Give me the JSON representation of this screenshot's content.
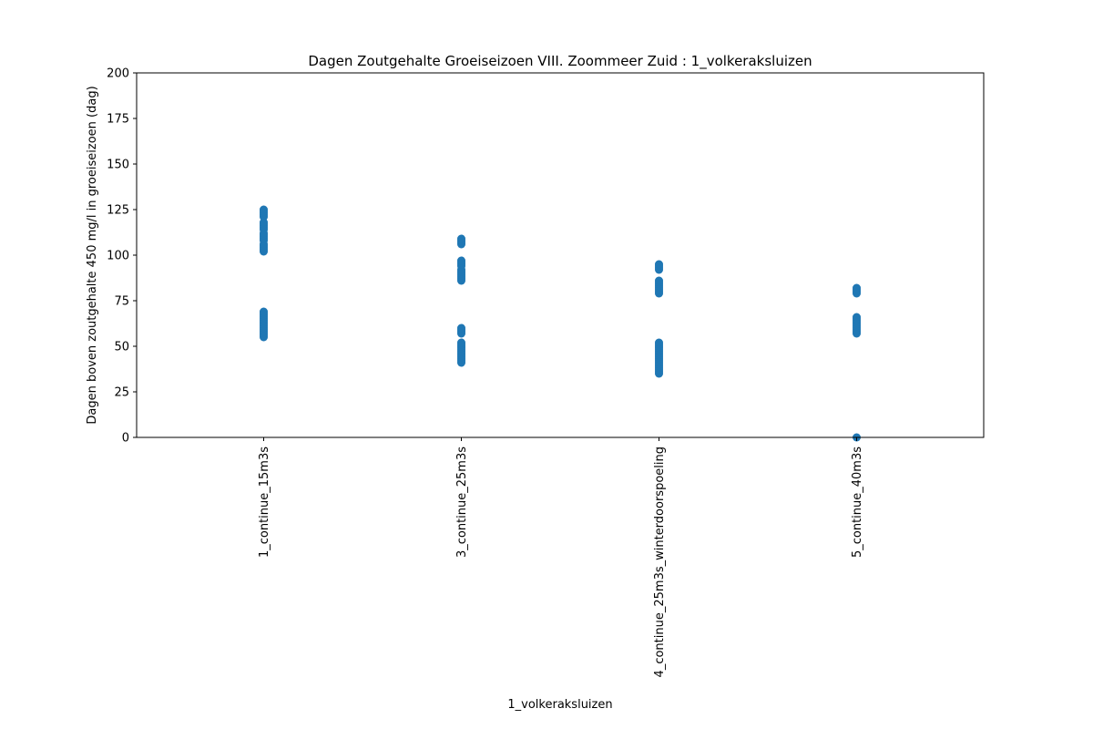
{
  "chart_data": {
    "type": "scatter",
    "title": "Dagen Zoutgehalte Groeiseizoen VIII. Zoommeer Zuid : 1_volkeraksluizen",
    "xlabel": "1_volkeraksluizen",
    "ylabel": "Dagen boven zoutgehalte 450 mg/l in groeiseizoen (dag)",
    "ylim": [
      0,
      200
    ],
    "yticks": [
      0,
      25,
      50,
      75,
      100,
      125,
      150,
      175,
      200
    ],
    "grid": false,
    "legend": "none",
    "marker_color": "#1f77b4",
    "categories": [
      "1_continue_15m3s",
      "3_continue_25m3s",
      "4_continue_25m3s_winterdoorspoeling",
      "5_continue_40m3s"
    ],
    "points": [
      {
        "category": "1_continue_15m3s",
        "values": [
          55,
          56,
          57,
          58,
          59,
          60,
          61,
          62,
          63,
          64,
          65,
          66,
          67,
          68,
          69,
          102,
          103,
          104,
          105,
          106,
          108,
          109,
          110,
          111,
          112,
          114,
          115,
          116,
          117,
          118,
          121,
          122,
          123,
          124,
          125
        ]
      },
      {
        "category": "3_continue_25m3s",
        "values": [
          41,
          42,
          43,
          44,
          45,
          46,
          47,
          48,
          49,
          50,
          51,
          52,
          57,
          58,
          59,
          60,
          86,
          87,
          88,
          89,
          90,
          91,
          92,
          94,
          95,
          96,
          97,
          106,
          107,
          108,
          109
        ]
      },
      {
        "category": "4_continue_25m3s_winterdoorspoeling",
        "values": [
          35,
          36,
          37,
          38,
          39,
          40,
          41,
          42,
          43,
          44,
          45,
          46,
          47,
          48,
          49,
          50,
          51,
          52,
          79,
          80,
          81,
          82,
          83,
          84,
          85,
          86,
          92,
          93,
          94,
          95
        ]
      },
      {
        "category": "5_continue_40m3s",
        "values": [
          0,
          57,
          58,
          59,
          60,
          61,
          62,
          63,
          64,
          65,
          66,
          79,
          80,
          81,
          82
        ]
      }
    ]
  }
}
